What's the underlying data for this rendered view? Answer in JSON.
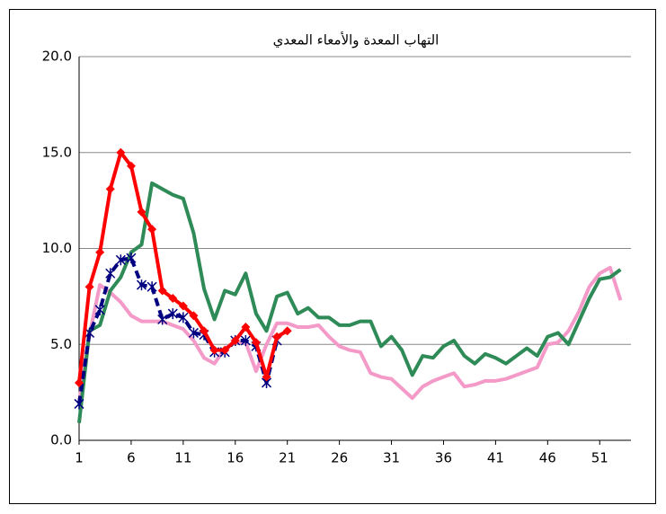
{
  "chart_data": {
    "type": "line",
    "title": "التهاب المعدة والأمعاء المعدي",
    "x": [
      1,
      2,
      3,
      4,
      5,
      6,
      7,
      8,
      9,
      10,
      11,
      12,
      13,
      14,
      15,
      16,
      17,
      18,
      19,
      20,
      21,
      22,
      23,
      24,
      25,
      26,
      27,
      28,
      29,
      30,
      31,
      32,
      33,
      34,
      35,
      36,
      37,
      38,
      39,
      40,
      41,
      42,
      43,
      44,
      45,
      46,
      47,
      48,
      49,
      50,
      51,
      52,
      53
    ],
    "xlim": [
      1,
      54
    ],
    "xticks": [
      1,
      6,
      11,
      16,
      21,
      26,
      31,
      36,
      41,
      46,
      51
    ],
    "ylim": [
      0,
      20
    ],
    "yticks": [
      {
        "value": 0,
        "label": "0.0"
      },
      {
        "value": 5,
        "label": "5.0"
      },
      {
        "value": 10,
        "label": "10.0"
      },
      {
        "value": 15,
        "label": "15.0"
      },
      {
        "value": 20,
        "label": "20.0"
      }
    ],
    "grid": true,
    "series": [
      {
        "color": "#f49ac8",
        "values": [
          2.0,
          5.5,
          8.1,
          7.7,
          7.2,
          6.5,
          6.2,
          6.2,
          6.2,
          6.0,
          5.8,
          5.2,
          4.3,
          4.0,
          4.8,
          5.1,
          5.1,
          3.6,
          5.0,
          6.1,
          6.1,
          5.9,
          5.9,
          6.0,
          5.4,
          4.9,
          4.7,
          4.6,
          3.5,
          3.3,
          3.2,
          2.7,
          2.2,
          2.8,
          3.1,
          3.3,
          3.5,
          2.8,
          2.9,
          3.1,
          3.1,
          3.2,
          3.4,
          3.6,
          3.8,
          5.0,
          5.1,
          5.7,
          6.7,
          8.0,
          8.7,
          9.0,
          7.3
        ]
      },
      {
        "color": "#2e8b57",
        "values": [
          0.9,
          5.7,
          6.0,
          7.8,
          8.5,
          9.8,
          10.2,
          13.4,
          13.1,
          12.8,
          12.6,
          10.8,
          7.9,
          6.3,
          7.8,
          7.6,
          8.7,
          6.6,
          5.7,
          7.5,
          7.7,
          6.6,
          6.9,
          6.4,
          6.4,
          6.0,
          6.0,
          6.2,
          6.2,
          4.9,
          5.4,
          4.7,
          3.4,
          4.4,
          4.3,
          4.9,
          5.2,
          4.4,
          4.0,
          4.5,
          4.3,
          4.0,
          4.4,
          4.8,
          4.4,
          5.4,
          5.6,
          5.0,
          6.2,
          7.4,
          8.4,
          8.5,
          8.9
        ]
      },
      {
        "color": "#000080",
        "dashed": true,
        "marker": "asterisk",
        "values": [
          1.9,
          5.6,
          6.8,
          8.7,
          9.4,
          9.5,
          8.1,
          8.0,
          6.3,
          6.6,
          6.4,
          5.6,
          5.5,
          4.6,
          4.6,
          5.2,
          5.2,
          4.9,
          3.0,
          5.2,
          null,
          null,
          null,
          null,
          null,
          null,
          null,
          null,
          null,
          null,
          null,
          null,
          null,
          null,
          null,
          null,
          null,
          null,
          null,
          null,
          null,
          null,
          null,
          null,
          null,
          null,
          null,
          null,
          null,
          null,
          null,
          null,
          null
        ]
      },
      {
        "color": "#ff0000",
        "marker": "diamond",
        "values": [
          3.0,
          8.0,
          9.8,
          13.1,
          15.0,
          14.3,
          11.9,
          11.0,
          7.8,
          7.4,
          7.0,
          6.5,
          5.7,
          4.7,
          4.7,
          5.2,
          5.9,
          5.1,
          3.3,
          5.4,
          5.7,
          null,
          null,
          null,
          null,
          null,
          null,
          null,
          null,
          null,
          null,
          null,
          null,
          null,
          null,
          null,
          null,
          null,
          null,
          null,
          null,
          null,
          null,
          null,
          null,
          null,
          null,
          null,
          null,
          null,
          null,
          null,
          null
        ]
      }
    ]
  }
}
